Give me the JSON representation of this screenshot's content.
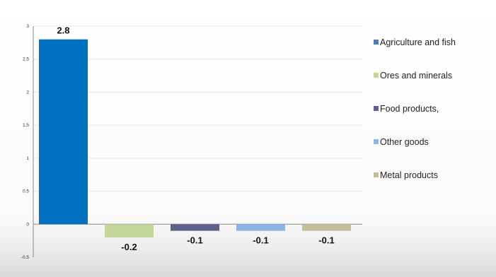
{
  "chart_data": {
    "type": "bar",
    "categories": [
      "Agriculture and fish",
      "Ores and minerals",
      "Food products,",
      "Other  goods",
      "Metal products"
    ],
    "values": [
      2.8,
      -0.2,
      -0.1,
      -0.1,
      -0.1
    ],
    "data_labels": [
      "2.8",
      "-0.2",
      "-0.1",
      "-0.1",
      "-0.1"
    ],
    "colors": [
      "#0070c0",
      "#c4d79b",
      "#60608f",
      "#8db4e2",
      "#c4bd97"
    ],
    "ylim": [
      -0.5,
      3
    ],
    "yticks": [
      3,
      2.5,
      2,
      1.5,
      1,
      0.5,
      0,
      -0.5
    ],
    "ytick_labels": [
      "3",
      "2.5",
      "2",
      "1.5",
      "1",
      "0.5",
      "0",
      "-0.5"
    ],
    "grid": true,
    "legend_position": "right",
    "title": "",
    "xlabel": "",
    "ylabel": ""
  },
  "legend": {
    "items": [
      {
        "label": "Agriculture and fish",
        "color": "#4a7ebb"
      },
      {
        "label": "Ores and minerals",
        "color": "#c4d79b"
      },
      {
        "label": "Food products,",
        "color": "#60608f"
      },
      {
        "label": "Other  goods",
        "color": "#8db4e2"
      },
      {
        "label": "Metal products",
        "color": "#c4bd97"
      }
    ]
  }
}
